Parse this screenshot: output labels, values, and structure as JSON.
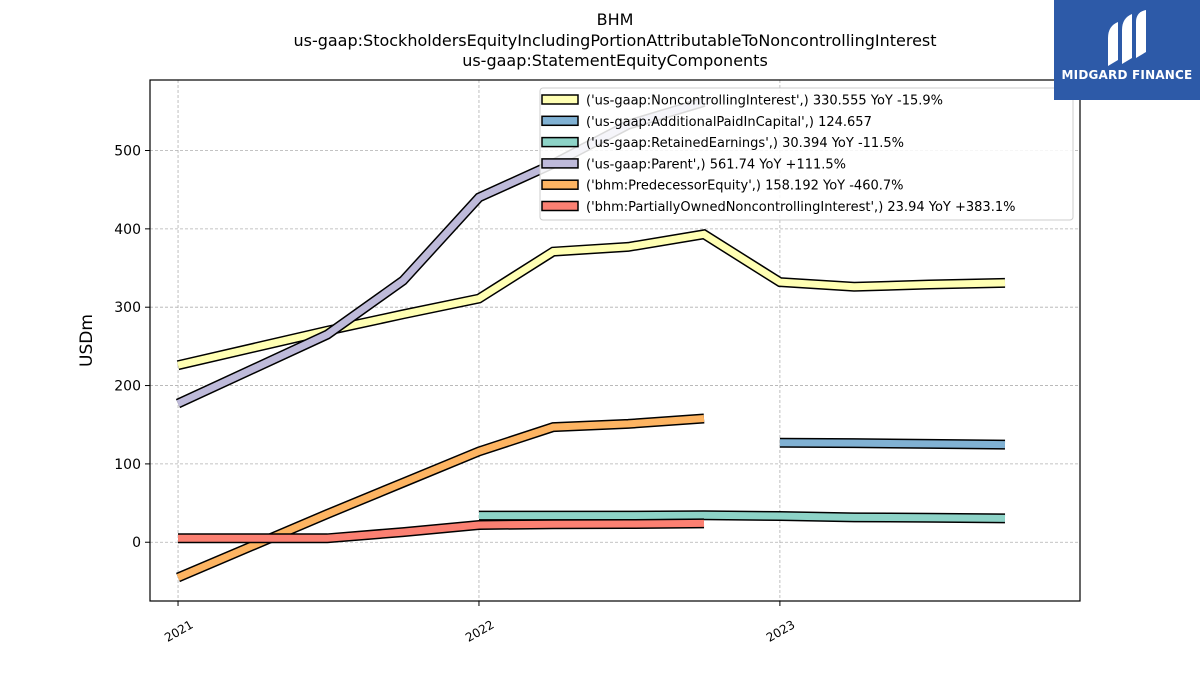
{
  "header": {
    "title_lines": [
      "BHM",
      "us-gaap:StockholdersEquityIncludingPortionAttributableToNoncontrollingInterest",
      "us-gaap:StatementEquityComponents"
    ]
  },
  "brand": {
    "name": "MIDGARD FINANCE",
    "color": "#2d5aa8"
  },
  "chart_data": {
    "type": "line",
    "title": "BHM",
    "subtitle": "us-gaap:StockholdersEquityIncludingPortionAttributableToNoncontrollingInterest us-gaap:StatementEquityComponents",
    "xlabel": "",
    "ylabel": "USDm",
    "x_ticks": [
      "2021",
      "2022",
      "2023"
    ],
    "y_ticks": [
      0,
      100,
      200,
      300,
      400,
      500
    ],
    "xlim": [
      "2020-11-28",
      "2023-12-31"
    ],
    "ylim": [
      -75,
      590
    ],
    "grid": true,
    "legend_position": "top-right",
    "series": [
      {
        "name": "('us-gaap:NoncontrollingInterest',) 330.555 YoY -15.9%",
        "color": "#ffffb3",
        "points": [
          [
            "2021-01-01",
            226
          ],
          [
            "2021-07-01",
            270
          ],
          [
            "2021-10-01",
            291
          ],
          [
            "2022-01-01",
            311
          ],
          [
            "2022-04-01",
            371
          ],
          [
            "2022-07-01",
            377
          ],
          [
            "2022-10-01",
            393
          ],
          [
            "2023-01-01",
            332
          ],
          [
            "2023-04-01",
            326
          ],
          [
            "2023-07-01",
            329
          ],
          [
            "2023-10-01",
            331
          ]
        ]
      },
      {
        "name": "('us-gaap:AdditionalPaidInCapital',) 124.657",
        "color": "#80b1d3",
        "points": [
          [
            "2023-01-01",
            127
          ],
          [
            "2023-04-01",
            126.5
          ],
          [
            "2023-07-01",
            125.5
          ],
          [
            "2023-10-01",
            124.657
          ]
        ]
      },
      {
        "name": "('us-gaap:RetainedEarnings',) 30.394 YoY -11.5%",
        "color": "#8dd3c7",
        "points": [
          [
            "2022-01-01",
            34
          ],
          [
            "2022-04-01",
            34
          ],
          [
            "2022-07-01",
            34
          ],
          [
            "2022-10-01",
            34.4
          ],
          [
            "2023-01-01",
            33.5
          ],
          [
            "2023-04-01",
            31.7
          ],
          [
            "2023-07-01",
            31.3
          ],
          [
            "2023-10-01",
            30.394
          ]
        ]
      },
      {
        "name": "('us-gaap:Parent',) 561.74 YoY +111.5%",
        "color": "#bebada",
        "points": [
          [
            "2021-01-01",
            177
          ],
          [
            "2021-07-01",
            265
          ],
          [
            "2021-10-01",
            334
          ],
          [
            "2022-01-01",
            440
          ],
          [
            "2022-04-01",
            483
          ],
          [
            "2022-07-01",
            533
          ],
          [
            "2022-10-01",
            562
          ]
        ]
      },
      {
        "name": "('bhm:PredecessorEquity',) 158.192 YoY -460.7%",
        "color": "#fdb462",
        "points": [
          [
            "2021-01-01",
            -45
          ],
          [
            "2021-07-01",
            36
          ],
          [
            "2021-10-01",
            76
          ],
          [
            "2022-01-01",
            116
          ],
          [
            "2022-04-01",
            147
          ],
          [
            "2022-07-01",
            151
          ],
          [
            "2022-10-01",
            158
          ]
        ]
      },
      {
        "name": "('bhm:PartiallyOwnedNoncontrollingInterest',) 23.94 YoY +383.1%",
        "color": "#fb8072",
        "points": [
          [
            "2021-01-01",
            5
          ],
          [
            "2021-07-01",
            5
          ],
          [
            "2021-10-01",
            13
          ],
          [
            "2022-01-01",
            22
          ],
          [
            "2022-04-01",
            23
          ],
          [
            "2022-07-01",
            23.3
          ],
          [
            "2022-10-01",
            24
          ]
        ]
      }
    ]
  }
}
